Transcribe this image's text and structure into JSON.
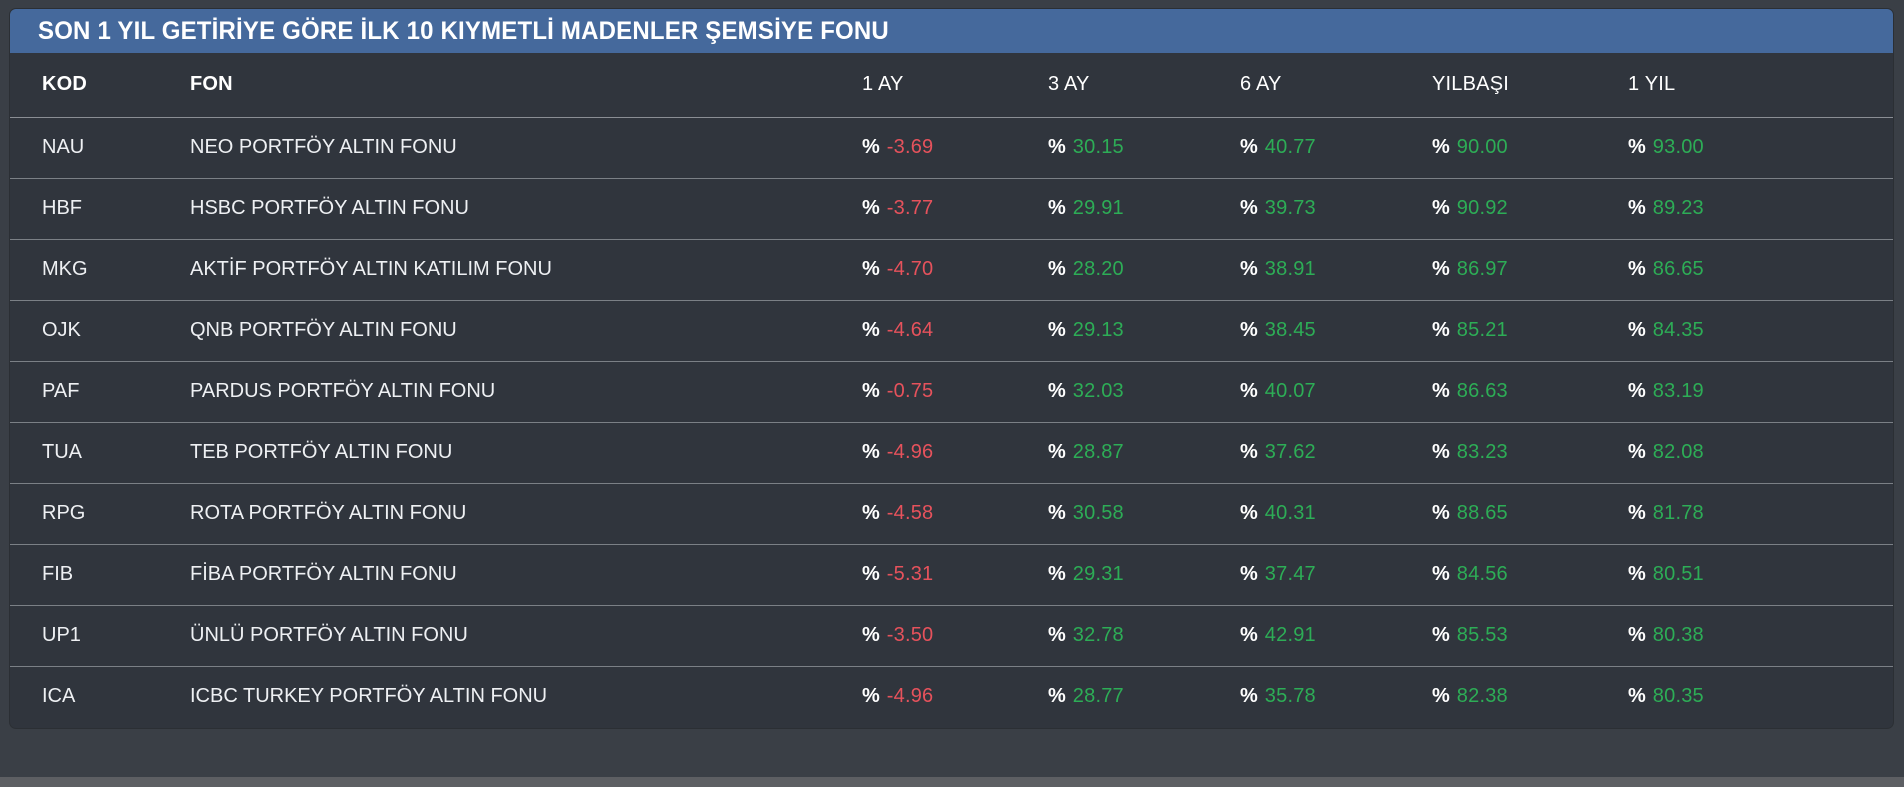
{
  "title": "SON 1 YIL GETİRİYE GÖRE İLK 10 KIYMETLİ MADENLER ŞEMSİYE FONU",
  "table": {
    "columns": [
      "KOD",
      "FON",
      "1 AY",
      "3 AY",
      "6 AY",
      "YILBAŞI",
      "1 YIL"
    ],
    "percent_prefix": "%",
    "value_keys": [
      "ay1",
      "ay3",
      "ay6",
      "yilbasi",
      "yil1"
    ],
    "rows": [
      {
        "kod": "NAU",
        "fon": "NEO PORTFÖY ALTIN FONU",
        "ay1": "-3.69",
        "ay3": "30.15",
        "ay6": "40.77",
        "yilbasi": "90.00",
        "yil1": "93.00"
      },
      {
        "kod": "HBF",
        "fon": "HSBC PORTFÖY ALTIN FONU",
        "ay1": "-3.77",
        "ay3": "29.91",
        "ay6": "39.73",
        "yilbasi": "90.92",
        "yil1": "89.23"
      },
      {
        "kod": "MKG",
        "fon": "AKTİF PORTFÖY ALTIN KATILIM FONU",
        "ay1": "-4.70",
        "ay3": "28.20",
        "ay6": "38.91",
        "yilbasi": "86.97",
        "yil1": "86.65"
      },
      {
        "kod": "OJK",
        "fon": "QNB PORTFÖY ALTIN FONU",
        "ay1": "-4.64",
        "ay3": "29.13",
        "ay6": "38.45",
        "yilbasi": "85.21",
        "yil1": "84.35"
      },
      {
        "kod": "PAF",
        "fon": "PARDUS PORTFÖY ALTIN FONU",
        "ay1": "-0.75",
        "ay3": "32.03",
        "ay6": "40.07",
        "yilbasi": "86.63",
        "yil1": "83.19"
      },
      {
        "kod": "TUA",
        "fon": "TEB PORTFÖY ALTIN FONU",
        "ay1": "-4.96",
        "ay3": "28.87",
        "ay6": "37.62",
        "yilbasi": "83.23",
        "yil1": "82.08"
      },
      {
        "kod": "RPG",
        "fon": "ROTA PORTFÖY ALTIN FONU",
        "ay1": "-4.58",
        "ay3": "30.58",
        "ay6": "40.31",
        "yilbasi": "88.65",
        "yil1": "81.78"
      },
      {
        "kod": "FIB",
        "fon": "FİBA PORTFÖY ALTIN FONU",
        "ay1": "-5.31",
        "ay3": "29.31",
        "ay6": "37.47",
        "yilbasi": "84.56",
        "yil1": "80.51"
      },
      {
        "kod": "UP1",
        "fon": "ÜNLÜ PORTFÖY ALTIN FONU",
        "ay1": "-3.50",
        "ay3": "32.78",
        "ay6": "42.91",
        "yilbasi": "85.53",
        "yil1": "80.38"
      },
      {
        "kod": "ICA",
        "fon": "ICBC TURKEY PORTFÖY ALTIN FONU",
        "ay1": "-4.96",
        "ay3": "28.77",
        "ay6": "35.78",
        "yilbasi": "82.38",
        "yil1": "80.35"
      }
    ]
  },
  "colors": {
    "accent_blue": "#45699c",
    "negative": "#e6525c",
    "positive": "#2dad56",
    "card_background": "#30353d",
    "page_background": "#3a3f46",
    "divider": "#7b8086"
  }
}
